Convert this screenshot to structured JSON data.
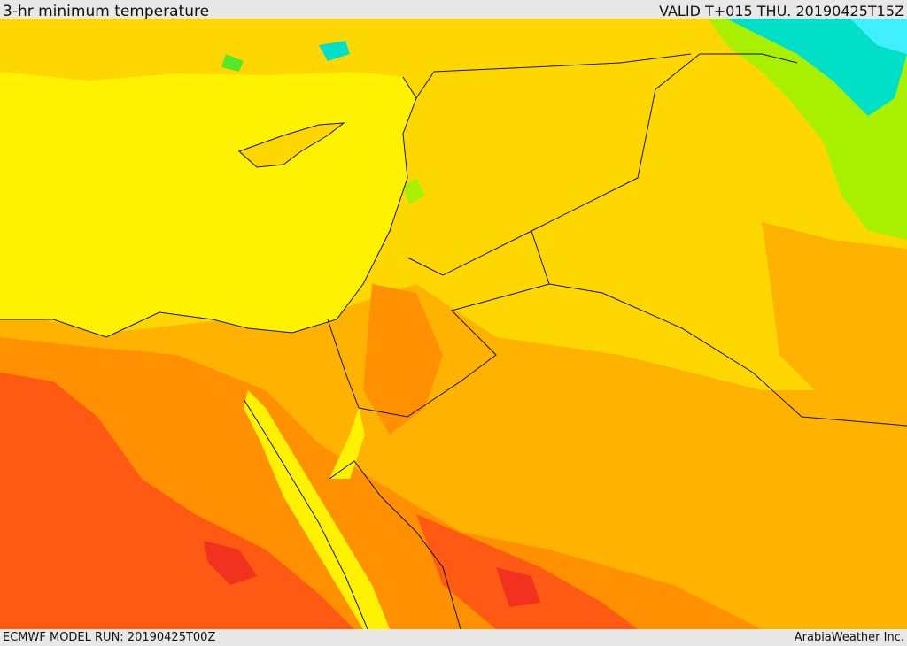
{
  "header": {
    "title": "3-hr minimum temperature",
    "valid": "VALID T+015 THU. 20190425T15Z"
  },
  "footer": {
    "model_run": "ECMWF MODEL RUN: 20190425T00Z",
    "credit": "ArabiaWeather Inc."
  },
  "map": {
    "colors": {
      "sea": "#fff200",
      "warm_yellow": "#ffd700",
      "amber": "#ffb300",
      "orange": "#ff9000",
      "red_orange": "#ff5a14",
      "red": "#f0321e",
      "light_green": "#a8f000",
      "green": "#54e82c",
      "cyan": "#00e0c8",
      "light_cyan": "#40f0ff",
      "border": "#111111"
    }
  }
}
